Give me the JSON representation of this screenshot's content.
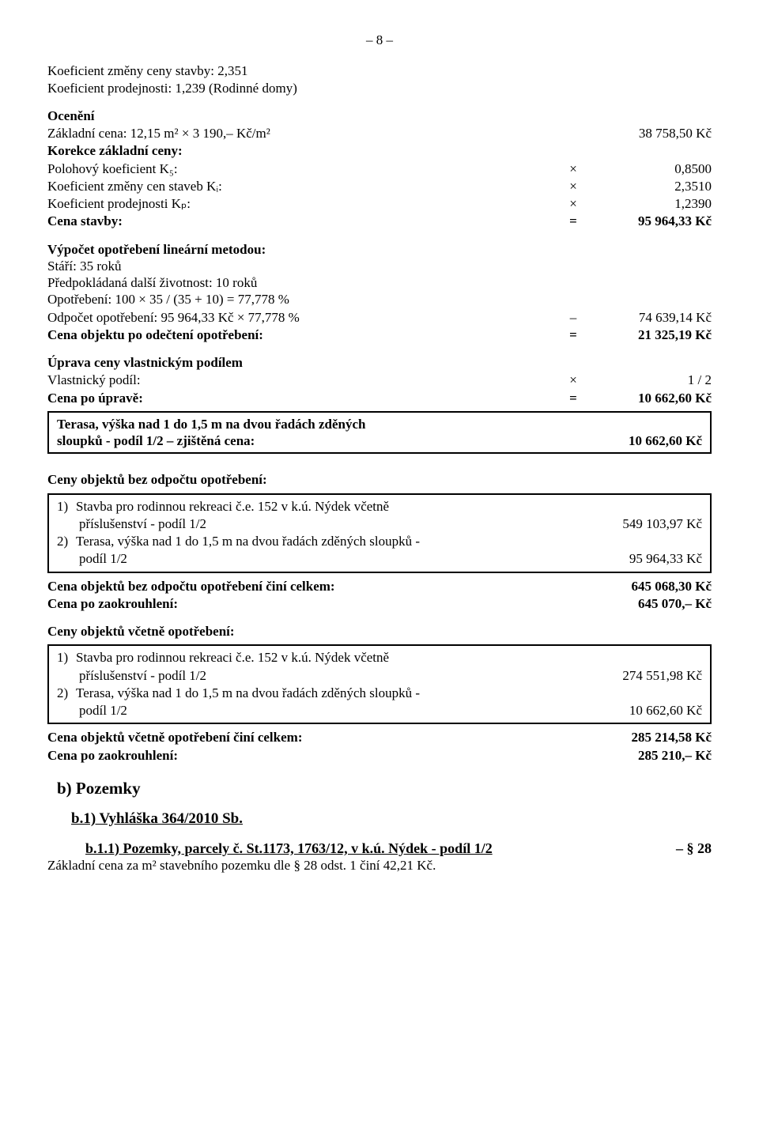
{
  "page_number": "– 8 –",
  "koef_zmena": "Koeficient změny ceny stavby: 2,351",
  "koef_prodej": "Koeficient prodejnosti: 1,239 (Rodinné domy)",
  "oceneni_title": "Ocenění",
  "zakladni_cena_label": "Základní cena: 12,15 m² × 3 190,– Kč/m²",
  "zakladni_cena_value": "38 758,50 Kč",
  "korekce_label": "Korekce základní ceny:",
  "k5_label": "Polohový koeficient K₅:",
  "k5_op": "×",
  "k5_value": "0,8500",
  "ki_label": "Koeficient změny cen staveb Kᵢ:",
  "ki_op": "×",
  "ki_value": "2,3510",
  "kp_label": "Koeficient prodejnosti Kₚ:",
  "kp_op": "×",
  "kp_value": "1,2390",
  "cena_stavby_label": "Cena stavby:",
  "cena_stavby_op": "=",
  "cena_stavby_value": "95 964,33 Kč",
  "vypocet_title": "Výpočet opotřebení lineární metodou:",
  "stari": "Stáří: 35 roků",
  "predpoklad": "Předpokládaná další životnost: 10 roků",
  "opotrebeni": "Opotřebení: 100 × 35 / (35 + 10) = 77,778 %",
  "odpocet_label": "Odpočet opotřebení: 95 964,33 Kč × 77,778 %",
  "odpocet_op": "–",
  "odpocet_value": "74 639,14 Kč",
  "cena_obj_label": "Cena objektu po odečtení opotřebení:",
  "cena_obj_op": "=",
  "cena_obj_value": "21 325,19 Kč",
  "uprava_title": "Úprava ceny vlastnickým podílem",
  "vlast_label": "Vlastnický podíl:",
  "vlast_op": "×",
  "vlast_value": "1 / 2",
  "cena_po_label": "Cena po úpravě:",
  "cena_po_op": "=",
  "cena_po_value": "10 662,60 Kč",
  "box1_line1": "Terasa, výška nad 1 do 1,5 m na dvou řadách zděných",
  "box1_line2": "sloupků - podíl 1/2 – zjištěná cena:",
  "box1_value": "10 662,60 Kč",
  "ceny_bez_title": "Ceny objektů bez odpočtu opotřebení:",
  "bez_item1_num": "1)",
  "bez_item1_label": "Stavba pro rodinnou rekreaci č.e. 152 v k.ú. Nýdek včetně",
  "bez_item1_label2": "příslušenství - podíl 1/2",
  "bez_item1_value": "549 103,97 Kč",
  "bez_item2_num": "2)",
  "bez_item2_label": "Terasa, výška nad 1 do 1,5 m na dvou řadách zděných sloupků -",
  "bez_item2_label2": "podíl 1/2",
  "bez_item2_value": "95 964,33 Kč",
  "cena_bez_celkem_label": "Cena objektů bez odpočtu opotřebení činí celkem:",
  "cena_bez_celkem_value": "645 068,30 Kč",
  "cena_bez_zaokr_label": "Cena po zaokrouhlení:",
  "cena_bez_zaokr_value": "645 070,– Kč",
  "ceny_vc_title": "Ceny objektů včetně opotřebení:",
  "vc_item1_num": "1)",
  "vc_item1_label": "Stavba pro rodinnou rekreaci č.e. 152 v k.ú. Nýdek včetně",
  "vc_item1_label2": "příslušenství - podíl 1/2",
  "vc_item1_value": "274 551,98 Kč",
  "vc_item2_num": "2)",
  "vc_item2_label": "Terasa, výška nad 1 do 1,5 m na dvou řadách zděných sloupků -",
  "vc_item2_label2": "podíl 1/2",
  "vc_item2_value": "10 662,60 Kč",
  "cena_vc_celkem_label": "Cena objektů včetně opotřebení činí celkem:",
  "cena_vc_celkem_value": "285 214,58 Kč",
  "cena_vc_zaokr_label": "Cena po zaokrouhlení:",
  "cena_vc_zaokr_value": "285 210,– Kč",
  "heading_b": "b)  Pozemky",
  "heading_b1": "b.1)  Vyhláška 364/2010 Sb.",
  "heading_b11": "b.1.1)  Pozemky, parcely č. St.1173, 1763/12, v k.ú. Nýdek - podíl 1/2",
  "heading_b11_right": "– § 28",
  "zakladni_stav": "Základní cena za m² stavebního pozemku dle § 28 odst. 1 činí 42,21 Kč."
}
